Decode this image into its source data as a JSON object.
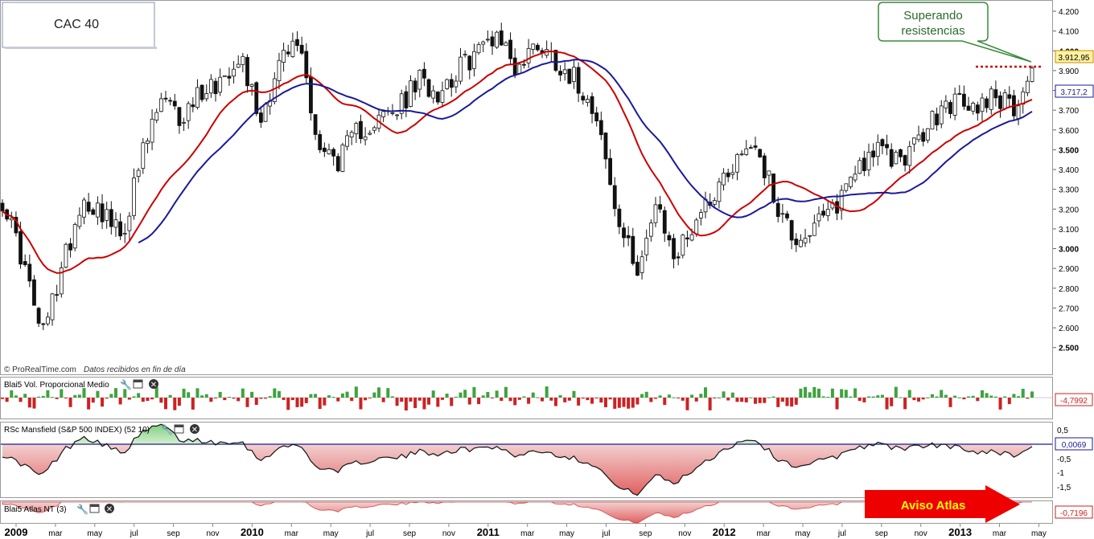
{
  "title_box": {
    "label": "CAC 40"
  },
  "callout": {
    "line1": "Superando",
    "line2": "resistencias"
  },
  "credit": {
    "site": "© ProRealTime.com",
    "note": "Datos recibidos en fin de día"
  },
  "price_axis": {
    "ticks": [
      "4.200",
      "4.100",
      "4.000",
      "3.900",
      "3.800",
      "3.700",
      "3.600",
      "3.500",
      "3.400",
      "3.300",
      "3.200",
      "3.100",
      "3.000",
      "2.900",
      "2.800",
      "2.700",
      "2.600",
      "2.500"
    ],
    "bold": [
      "4.000",
      "3.500",
      "3.000",
      "2.500"
    ],
    "last_price": "3.912,95",
    "ma_value": "3.717,2"
  },
  "panels": {
    "volume": {
      "label": "Blai5 Vol. Proporcional Medio",
      "value": "-4,7992"
    },
    "mansfield": {
      "label": "RSc Mansfield (S&P 500 INDEX) (52 10)",
      "value": "0,0069",
      "ticks": [
        "0,5",
        "-0,5",
        "-1",
        "-1,5"
      ]
    },
    "atlas": {
      "label": "Blai5 Atlas NT (3)",
      "value": "-0,7196",
      "banner": "Aviso Atlas"
    }
  },
  "time_axis": [
    {
      "label": "2009",
      "bold": true
    },
    {
      "label": "mar"
    },
    {
      "label": "may"
    },
    {
      "label": "jul"
    },
    {
      "label": "sep"
    },
    {
      "label": "nov"
    },
    {
      "label": "2010",
      "bold": true
    },
    {
      "label": "mar"
    },
    {
      "label": "may"
    },
    {
      "label": "jul"
    },
    {
      "label": "sep"
    },
    {
      "label": "nov"
    },
    {
      "label": "2011",
      "bold": true
    },
    {
      "label": "mar"
    },
    {
      "label": "may"
    },
    {
      "label": "jul"
    },
    {
      "label": "sep"
    },
    {
      "label": "nov"
    },
    {
      "label": "2012",
      "bold": true
    },
    {
      "label": "mar"
    },
    {
      "label": "may"
    },
    {
      "label": "jul"
    },
    {
      "label": "sep"
    },
    {
      "label": "nov"
    },
    {
      "label": "2013",
      "bold": true
    },
    {
      "label": "mar"
    },
    {
      "label": "may"
    }
  ],
  "colors": {
    "up_volume": "#3ea33e",
    "down_volume": "#cc2222",
    "sma_fast": "#cc0000",
    "sma_slow": "#1a1a99",
    "resistance": "#cc0000",
    "banner": "#ee0000"
  },
  "chart_data": {
    "type": "candlestick",
    "instrument": "CAC 40",
    "frequency": "weekly",
    "ylim": [
      2450,
      4230
    ],
    "close_path": [
      [
        "2009-01",
        3250
      ],
      [
        "2009-02",
        2950
      ],
      [
        "2009-03",
        2550
      ],
      [
        "2009-04",
        2900
      ],
      [
        "2009-05",
        3250
      ],
      [
        "2009-06",
        3200
      ],
      [
        "2009-07",
        3050
      ],
      [
        "2009-08",
        3450
      ],
      [
        "2009-09",
        3750
      ],
      [
        "2009-10",
        3650
      ],
      [
        "2009-11",
        3800
      ],
      [
        "2009-12",
        3850
      ],
      [
        "2010-01",
        4000
      ],
      [
        "2010-02",
        3650
      ],
      [
        "2010-03",
        3950
      ],
      [
        "2010-04",
        4050
      ],
      [
        "2010-05",
        3500
      ],
      [
        "2010-06",
        3450
      ],
      [
        "2010-07",
        3600
      ],
      [
        "2010-08",
        3650
      ],
      [
        "2010-09",
        3700
      ],
      [
        "2010-10",
        3850
      ],
      [
        "2010-11",
        3800
      ],
      [
        "2010-12",
        3900
      ],
      [
        "2011-01",
        4000
      ],
      [
        "2011-02",
        4100
      ],
      [
        "2011-03",
        3900
      ],
      [
        "2011-04",
        4050
      ],
      [
        "2011-05",
        3950
      ],
      [
        "2011-06",
        3850
      ],
      [
        "2011-07",
        3700
      ],
      [
        "2011-08",
        3150
      ],
      [
        "2011-09",
        2900
      ],
      [
        "2011-10",
        3200
      ],
      [
        "2011-11",
        2950
      ],
      [
        "2011-12",
        3150
      ],
      [
        "2012-01",
        3300
      ],
      [
        "2012-02",
        3450
      ],
      [
        "2012-03",
        3550
      ],
      [
        "2012-04",
        3250
      ],
      [
        "2012-05",
        3050
      ],
      [
        "2012-06",
        3100
      ],
      [
        "2012-07",
        3200
      ],
      [
        "2012-08",
        3400
      ],
      [
        "2012-09",
        3500
      ],
      [
        "2012-10",
        3450
      ],
      [
        "2012-11",
        3500
      ],
      [
        "2012-12",
        3650
      ],
      [
        "2013-01",
        3750
      ],
      [
        "2013-02",
        3700
      ],
      [
        "2013-03",
        3800
      ],
      [
        "2013-04",
        3700
      ],
      [
        "2013-05",
        3913
      ]
    ],
    "last_close": 3912.95,
    "sma_slow_last": 3717.2,
    "resistance_level": 3870,
    "rs_mansfield_last": 0.0069,
    "volume_indicator_last": -4.7992,
    "atlas_last": -0.7196
  }
}
